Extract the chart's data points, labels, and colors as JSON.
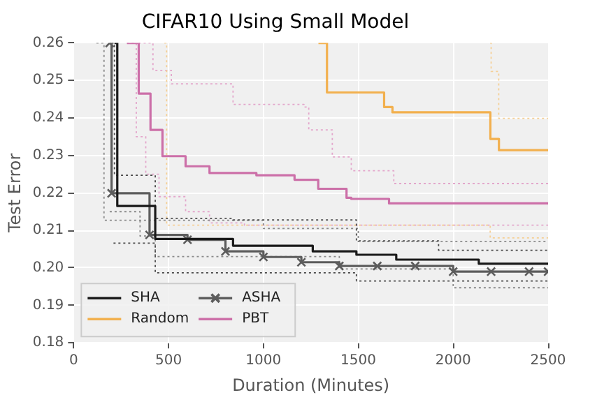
{
  "chart_data": {
    "type": "step",
    "title": "CIFAR10 Using Small Model",
    "xlabel": "Duration (Minutes)",
    "ylabel": "Test Error",
    "xlim": [
      0,
      2500
    ],
    "xticks": [
      0,
      500,
      1000,
      1500,
      2000,
      2500
    ],
    "ylim": [
      0.18,
      0.26
    ],
    "yticks": [
      0.18,
      0.19,
      {
        "value": 0.2,
        "label": "0.20"
      },
      0.21,
      0.22,
      0.23,
      0.24,
      0.25,
      0.26
    ],
    "grid": true,
    "legend": "bottom left",
    "series": [
      {
        "name": "SHA",
        "color": "#1a1a1a",
        "x": [
          215,
          230,
          430,
          840,
          1260,
          1490,
          1700,
          2135,
          2500
        ],
        "values": [
          0.26,
          0.2165,
          0.2077,
          0.2059,
          0.2044,
          0.2035,
          0.2022,
          0.2011,
          0.2011
        ]
      },
      {
        "name": "Random",
        "color": "#f2b04e",
        "x": [
          1290,
          1335,
          1636,
          1680,
          2196,
          2241,
          2500
        ],
        "values": [
          0.26,
          0.2468,
          0.2429,
          0.2415,
          0.2344,
          0.2314,
          0.2314
        ]
      },
      {
        "name": "ASHA",
        "color": "#5c5c5c",
        "marker": "cross",
        "x": [
          190,
          200,
          400,
          600,
          800,
          1000,
          1200,
          1400,
          1600,
          1800,
          2000,
          2200,
          2400,
          2500
        ],
        "values": [
          0.26,
          0.2199,
          0.2088,
          0.2075,
          0.2044,
          0.2029,
          0.2015,
          0.2005,
          0.2005,
          0.2005,
          0.199,
          0.199,
          0.199,
          0.199
        ]
      },
      {
        "name": "PBT",
        "color": "#cc6fa8",
        "x": [
          281,
          343,
          405,
          468,
          590,
          716,
          963,
          1164,
          1289,
          1438,
          1463,
          1662,
          2500
        ],
        "values": [
          0.26,
          0.2465,
          0.2368,
          0.2298,
          0.2271,
          0.2253,
          0.2247,
          0.2235,
          0.2211,
          0.2187,
          0.2184,
          0.2172,
          0.2172
        ]
      },
      {
        "color": "#4a4a4a",
        "line_style": "dotted",
        "x": [
          200,
          215,
          430,
          840,
          1490,
          1923,
          2500
        ],
        "values": [
          0.26,
          0.2247,
          0.2132,
          0.2128,
          0.2072,
          0.2047,
          0.2047
        ]
      },
      {
        "color": "#4a4a4a",
        "line_style": "dotted",
        "x": [
          210,
          430,
          1490,
          2500
        ],
        "values": [
          0.2066,
          0.1987,
          0.1965,
          0.1965
        ]
      },
      {
        "color": "#8a8a8a",
        "line_style": "dotted",
        "x": [
          120,
          160,
          1000,
          1500,
          2500
        ],
        "values": [
          0.26,
          0.2127,
          0.2105,
          0.207,
          0.207
        ]
      },
      {
        "color": "#8a8a8a",
        "line_style": "dotted",
        "x": [
          190,
          350,
          430,
          1400,
          2000,
          2500
        ],
        "values": [
          0.215,
          0.2085,
          0.203,
          0.1997,
          0.1947,
          0.1947
        ]
      },
      {
        "color": "#f5cf95",
        "line_style": "dotted",
        "x": [
          478,
          490,
          2195,
          2500
        ],
        "values": [
          0.26,
          0.2114,
          0.208,
          0.208
        ]
      },
      {
        "color": "#f5cf95",
        "line_style": "dotted",
        "x": [
          2195,
          2200,
          2240,
          2500
        ],
        "values": [
          0.26,
          0.2524,
          0.2399,
          0.2399
        ]
      },
      {
        "color": "#e3a6cb",
        "line_style": "dotted",
        "x": [
          343,
          418,
          515,
          840,
          1214,
          1239,
          1363,
          1463,
          1687,
          2500
        ],
        "values": [
          0.26,
          0.2527,
          0.2491,
          0.2436,
          0.2429,
          0.2368,
          0.2296,
          0.2259,
          0.2225,
          0.2225
        ]
      },
      {
        "color": "#e3a6cb",
        "line_style": "dotted",
        "x": [
          280,
          330,
          380,
          450,
          590,
          716,
          900,
          2500
        ],
        "values": [
          0.26,
          0.235,
          0.225,
          0.219,
          0.215,
          0.212,
          0.2114,
          0.2114
        ]
      }
    ]
  }
}
